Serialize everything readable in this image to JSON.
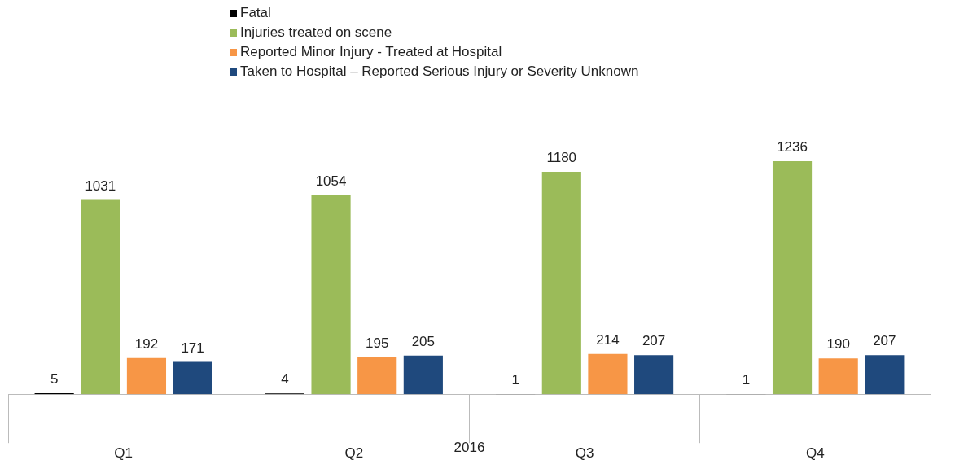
{
  "chart_data": {
    "type": "bar",
    "xlabel": "2016",
    "categories": [
      "Q1",
      "Q2",
      "Q3",
      "Q4"
    ],
    "series": [
      {
        "name": "Fatal",
        "color": "#000000",
        "values": [
          5,
          4,
          1,
          1
        ]
      },
      {
        "name": "Injuries treated on scene",
        "color": "#9bbb59",
        "values": [
          1031,
          1054,
          1180,
          1236
        ]
      },
      {
        "name": "Reported Minor Injury - Treated at Hospital",
        "color": "#f79646",
        "values": [
          192,
          195,
          214,
          190
        ]
      },
      {
        "name": "Taken to Hospital – Reported Serious Injury or Severity Unknown",
        "color": "#1f497d",
        "values": [
          171,
          205,
          207,
          207
        ]
      }
    ],
    "data_labels": true,
    "legend": "top",
    "grid": false,
    "tick_labels": "x"
  }
}
